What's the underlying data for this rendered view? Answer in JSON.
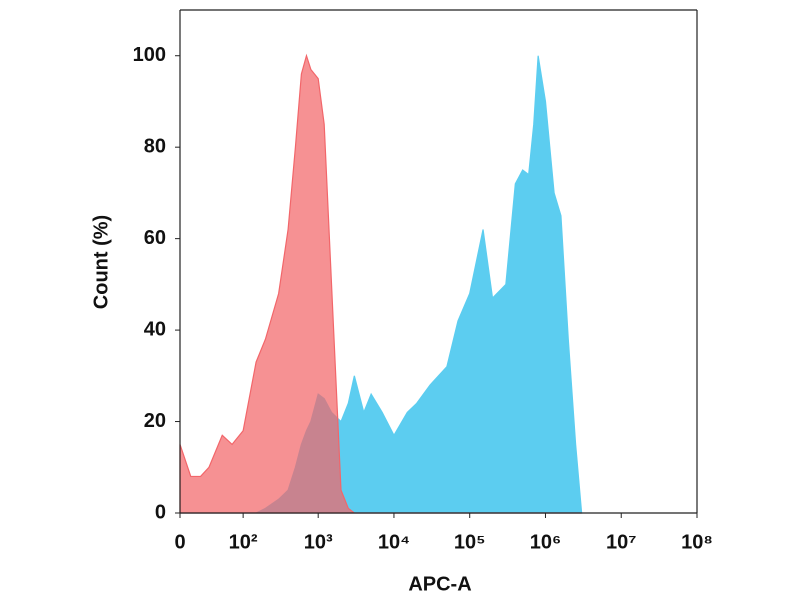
{
  "chart_data": {
    "type": "area",
    "xlabel": "APC-A",
    "ylabel": "Count (%)",
    "xscale": "arcsinh",
    "xcofactor": 30,
    "x": [
      0,
      10,
      20,
      30,
      50,
      70,
      100,
      150,
      200,
      300,
      400,
      500,
      600,
      700,
      800,
      1000,
      1200,
      1500,
      2000,
      2500,
      3000,
      4000,
      5000,
      7000,
      10000,
      15000,
      20000,
      30000,
      50000,
      70000,
      100000,
      150000,
      200000,
      300000,
      400000,
      500000,
      600000,
      700000,
      800000,
      1000000,
      1300000,
      1600000,
      2000000,
      2500000,
      3000000
    ],
    "series": [
      {
        "color": "#5ccdf0",
        "values": [
          0,
          0,
          0,
          0,
          0,
          0,
          0,
          0,
          1,
          3,
          5,
          10,
          15,
          18,
          20,
          26,
          25,
          22,
          20,
          24,
          30,
          22,
          26,
          22,
          17,
          22,
          24,
          28,
          32,
          42,
          48,
          62,
          47,
          50,
          72,
          75,
          74,
          85,
          100,
          90,
          70,
          65,
          38,
          15,
          0
        ]
      },
      {
        "color": "#f2666a",
        "values": [
          15,
          8,
          8,
          10,
          17,
          15,
          18,
          33,
          38,
          48,
          62,
          80,
          96,
          100,
          97,
          95,
          85,
          50,
          5,
          1,
          0,
          0,
          0,
          0,
          0,
          0,
          0,
          0,
          0,
          0,
          0,
          0,
          0,
          0,
          0,
          0,
          0,
          0,
          0,
          0,
          0,
          0,
          0,
          0,
          0
        ]
      }
    ],
    "xlim": [
      0,
      100000000
    ],
    "xticks": [
      0,
      {
        "value": 100,
        "label": "10²"
      },
      {
        "value": 1000,
        "label": "10³"
      },
      {
        "value": 10000,
        "label": "10⁴"
      },
      {
        "value": 100000,
        "label": "10⁵"
      },
      {
        "value": 1000000,
        "label": "10⁶"
      },
      {
        "value": 10000000,
        "label": "10⁷"
      },
      {
        "value": 100000000,
        "label": "10⁸"
      }
    ],
    "ylim": [
      0,
      110
    ],
    "yticks": [
      0,
      20,
      40,
      60,
      80,
      100
    ]
  }
}
